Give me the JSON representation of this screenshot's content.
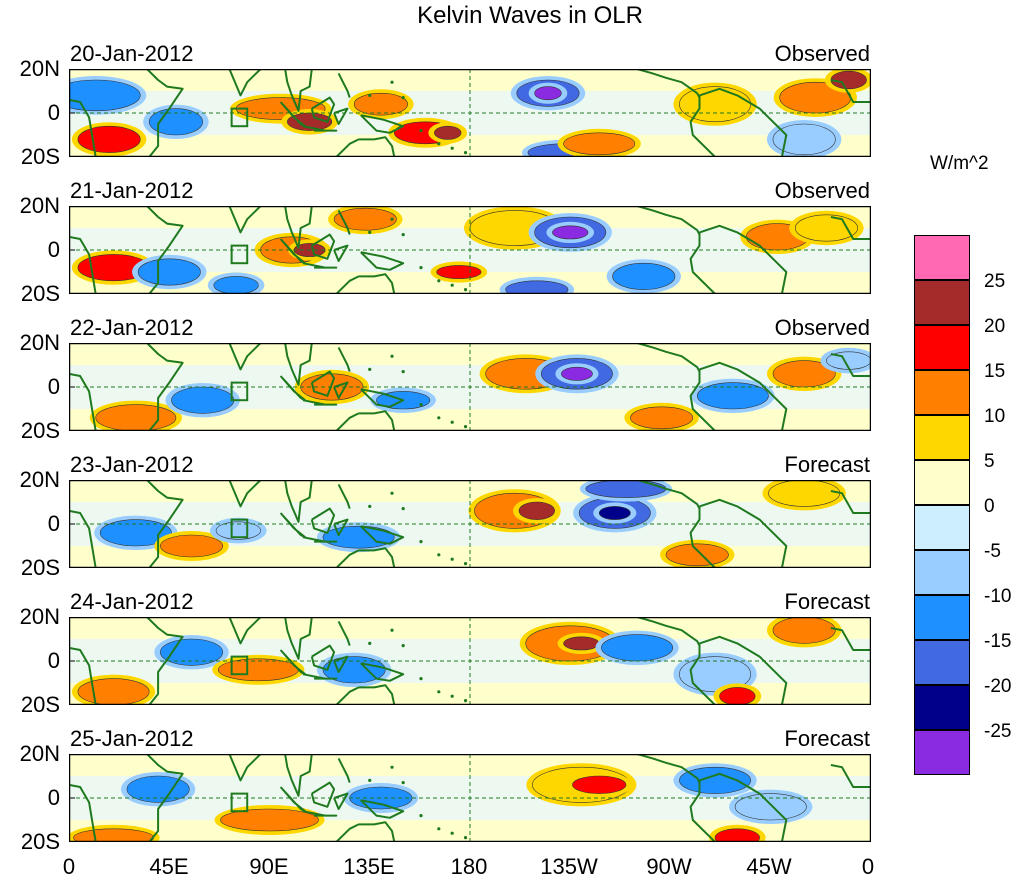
{
  "figure": {
    "title": "Kelvin Waves in OLR",
    "units": "W/m^2",
    "panels": [
      {
        "date": "20-Jan-2012",
        "kind": "Observed"
      },
      {
        "date": "21-Jan-2012",
        "kind": "Observed"
      },
      {
        "date": "22-Jan-2012",
        "kind": "Observed"
      },
      {
        "date": "23-Jan-2012",
        "kind": "Forecast"
      },
      {
        "date": "24-Jan-2012",
        "kind": "Forecast"
      },
      {
        "date": "25-Jan-2012",
        "kind": "Forecast"
      }
    ],
    "lat_labels": [
      "20N",
      "0",
      "20S"
    ],
    "lon_labels": [
      "0",
      "45E",
      "90E",
      "135E",
      "180",
      "135W",
      "90W",
      "45W",
      "0"
    ]
  },
  "colorbar": {
    "labels": [
      "25",
      "20",
      "15",
      "10",
      "5",
      "0",
      "-5",
      "-10",
      "-15",
      "-20",
      "-25"
    ],
    "colors": [
      "#ff69b4",
      "#a52a2a",
      "#ff0000",
      "#ff7f00",
      "#ffd700",
      "#ffffcc",
      "#cceeff",
      "#99ccff",
      "#1e90ff",
      "#4169e1",
      "#00008b",
      "#8a2be2"
    ]
  },
  "map_style": {
    "coastline_color": "#1f7a1f",
    "equator_color": "#1f7a1f"
  }
}
